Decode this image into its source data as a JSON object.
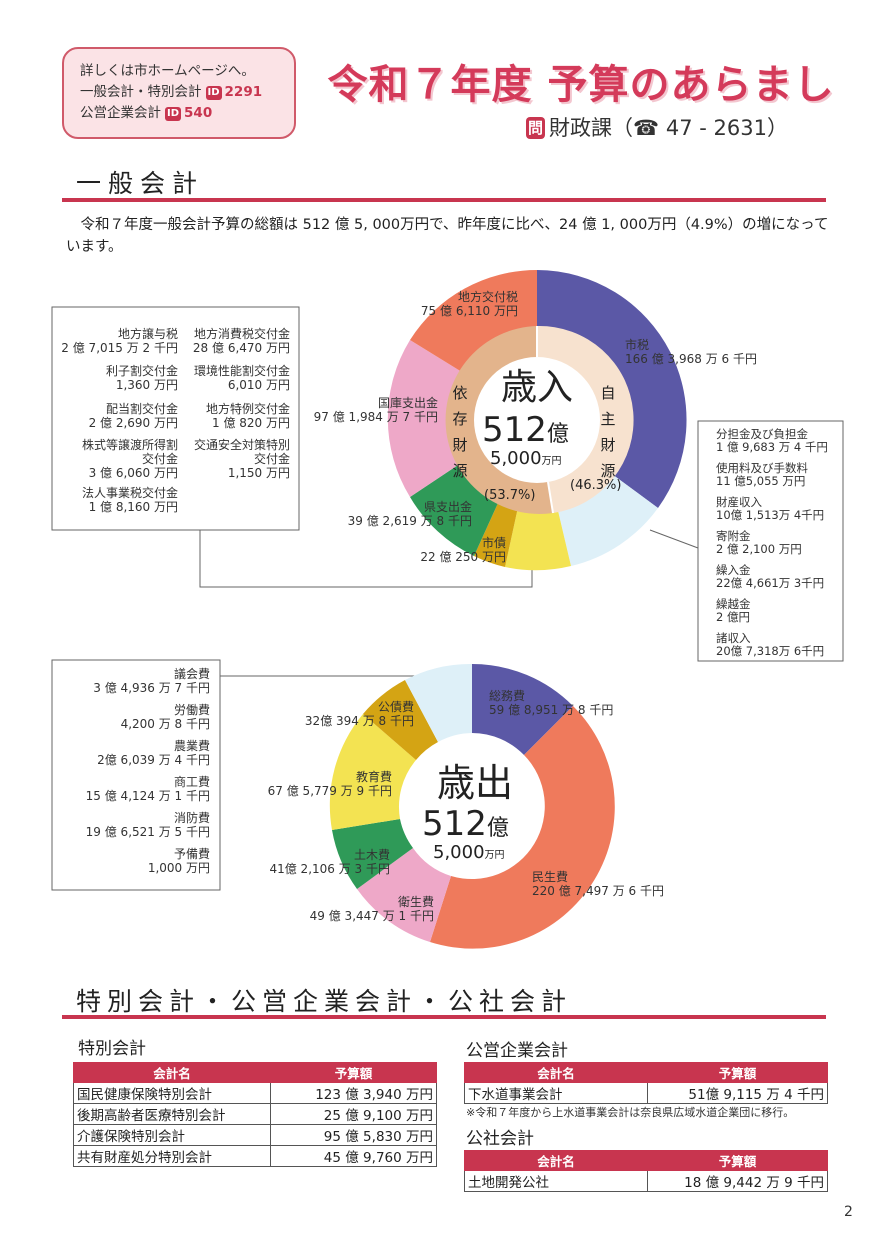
{
  "info_box": {
    "line1": "詳しくは市ホームページへ。",
    "line2_label": "一般会計・特別会計",
    "line2_id": "2291",
    "line3_label": "公営企業会計",
    "line3_id": "540",
    "id_mark": "ID"
  },
  "header": {
    "title": "令和７年度 予算のあらまし",
    "dept_mark": "問",
    "dept": "財政課（☎ 47 - 2631）"
  },
  "general": {
    "section_title": "一般会計",
    "intro": "令和７年度一般会計予算の総額は 512 億 5, 000万円で、昨年度に比べ、24 億 1, 000万円（4.9%）の増になっています。"
  },
  "revenue": {
    "center_title": "歳入",
    "center_amount": "512",
    "center_unit": "億",
    "center_sub": "5,000",
    "center_sub_unit": "万円",
    "dependent_label": "依存財源",
    "dependent_pct": "(53.7%)",
    "independent_label": "自主財源",
    "independent_pct": "(46.3%)",
    "colors": {
      "tax": "#5b58a6",
      "other_self": "#def0f8",
      "bonds": "#f3e352",
      "pref": "#d4a414",
      "prefg": "#2f9a58",
      "national": "#eea8c8",
      "local": "#ef7a5c",
      "inner_self": "#f7e2cf",
      "inner_dep": "#e3b48c"
    },
    "labels": [
      {
        "name": "地方交付税",
        "amount": "75 億 6,110 万円"
      },
      {
        "name": "市税",
        "amount": "166 億 3,968 万 6 千円"
      },
      {
        "name": "国庫支出金",
        "amount": "97 億 1,984 万 7 千円"
      },
      {
        "name": "県支出金",
        "amount": "39 億 2,619 万 8 千円"
      },
      {
        "name": "市債",
        "amount": "22 億 250 万円"
      }
    ],
    "left_items": [
      {
        "name": "地方譲与税",
        "amount": "2 億 7,015 万 2 千円"
      },
      {
        "name": "地方消費税交付金",
        "amount": "28 億 6,470 万円"
      },
      {
        "name": "利子割交付金",
        "amount": "1,360 万円"
      },
      {
        "name": "環境性能割交付金",
        "amount": "6,010 万円"
      },
      {
        "name": "配当割交付金",
        "amount": "2 億 2,690 万円"
      },
      {
        "name": "地方特例交付金",
        "amount": "1 億 820 万円"
      },
      {
        "name": "株式等譲渡所得割交付金",
        "amount": "3 億 6,060 万円"
      },
      {
        "name": "交通安全対策特別交付金",
        "amount": "1,150 万円"
      },
      {
        "name": "法人事業税交付金",
        "amount": "1 億 8,160 万円"
      }
    ],
    "right_items": [
      {
        "name": "分担金及び負担金",
        "amount": "1 億 9,683 万 4 千円"
      },
      {
        "name": "使用料及び手数料",
        "amount": "11 億5,055 万円"
      },
      {
        "name": "財産収入",
        "amount": "10億 1,513万 4千円"
      },
      {
        "name": "寄附金",
        "amount": "2 億 2,100 万円"
      },
      {
        "name": "繰入金",
        "amount": "22億 4,661万 3千円"
      },
      {
        "name": "繰越金",
        "amount": "2 億円"
      },
      {
        "name": "諸収入",
        "amount": "20億 7,318万 6千円"
      }
    ]
  },
  "expenditure": {
    "center_title": "歳出",
    "center_amount": "512",
    "center_unit": "億",
    "center_sub": "5,000",
    "center_sub_unit": "万円",
    "colors": {
      "general": "#5b58a6",
      "welfare": "#ef7a5c",
      "health": "#eea8c8",
      "civil": "#2f9a58",
      "edu": "#f3e352",
      "debt": "#d4a414",
      "other": "#def0f8"
    },
    "labels": [
      {
        "name": "総務費",
        "amount": "59 億 8,951 万 8 千円"
      },
      {
        "name": "民生費",
        "amount": "220 億 7,497 万 6 千円"
      },
      {
        "name": "衛生費",
        "amount": "49 億 3,447 万 1 千円"
      },
      {
        "name": "土木費",
        "amount": "41億 2,106 万 3 千円"
      },
      {
        "name": "教育費",
        "amount": "67 億 5,779 万 9 千円"
      },
      {
        "name": "公債費",
        "amount": "32億 394 万 8 千円"
      }
    ],
    "left_items": [
      {
        "name": "議会費",
        "amount": "3 億 4,936 万 7 千円"
      },
      {
        "name": "労働費",
        "amount": "4,200 万 8 千円"
      },
      {
        "name": "農業費",
        "amount": "2億 6,039 万 4 千円"
      },
      {
        "name": "商工費",
        "amount": "15 億 4,124 万 1 千円"
      },
      {
        "name": "消防費",
        "amount": "19 億 6,521 万 5 千円"
      },
      {
        "name": "予備費",
        "amount": "1,000 万円"
      }
    ]
  },
  "special": {
    "section_title": "特別会計・公営企業会計・公社会計",
    "special_title": "特別会計",
    "col_name": "会計名",
    "col_amount": "予算額",
    "special_rows": [
      {
        "name": "国民健康保険特別会計",
        "amount": "123 億 3,940 万円"
      },
      {
        "name": "後期高齢者医療特別会計",
        "amount": "25 億 9,100 万円"
      },
      {
        "name": "介護保険特別会計",
        "amount": "95 億 5,830 万円"
      },
      {
        "name": "共有財産処分特別会計",
        "amount": "45 億 9,760 万円"
      }
    ],
    "enterprise_title": "公営企業会計",
    "enterprise_rows": [
      {
        "name": "下水道事業会計",
        "amount": "51億 9,115 万 4 千円"
      }
    ],
    "enterprise_note": "※令和７年度から上水道事業会計は奈良県広域水道企業団に移行。",
    "corp_title": "公社会計",
    "corp_rows": [
      {
        "name": "土地開発公社",
        "amount": "18 億 9,442 万 9 千円"
      }
    ]
  },
  "page_number": "2"
}
